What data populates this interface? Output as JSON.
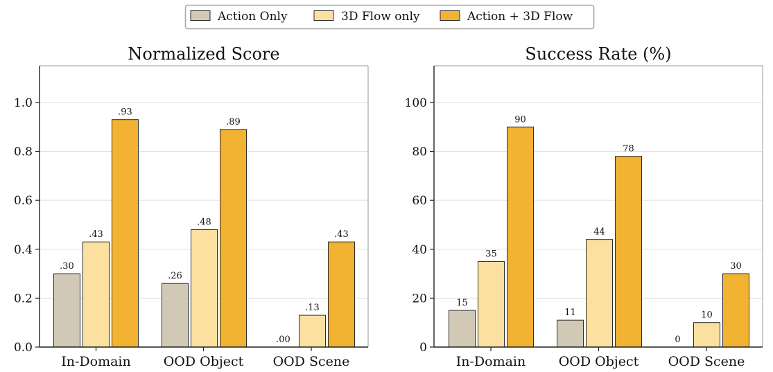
{
  "legend": {
    "placement": "top-center",
    "items": [
      {
        "label": "Action Only",
        "color": "#d1c9b5"
      },
      {
        "label": "3D Flow only",
        "color": "#fbe0a0"
      },
      {
        "label": "Action + 3D Flow",
        "color": "#f2b232"
      }
    ]
  },
  "chart_data": [
    {
      "type": "bar",
      "title": "Normalized Score",
      "xlabel": "",
      "ylabel": "",
      "ylim": [
        0,
        1.15
      ],
      "yticks": [
        0.0,
        0.2,
        0.4,
        0.6,
        0.8,
        1.0
      ],
      "ytick_labels": [
        "0.0",
        "0.2",
        "0.4",
        "0.6",
        "0.8",
        "1.0"
      ],
      "grid": "horizontal",
      "categories": [
        "In-Domain",
        "OOD Object",
        "OOD Scene"
      ],
      "series": [
        {
          "name": "Action Only",
          "color": "#d1c9b5",
          "values": [
            0.3,
            0.26,
            0.0
          ],
          "labels": [
            ".30",
            ".26",
            ".00"
          ]
        },
        {
          "name": "3D Flow only",
          "color": "#fbe0a0",
          "values": [
            0.43,
            0.48,
            0.13
          ],
          "labels": [
            ".43",
            ".48",
            ".13"
          ]
        },
        {
          "name": "Action + 3D Flow",
          "color": "#f2b232",
          "values": [
            0.93,
            0.89,
            0.43
          ],
          "labels": [
            ".93",
            ".89",
            ".43"
          ]
        }
      ]
    },
    {
      "type": "bar",
      "title": "Success Rate (%)",
      "xlabel": "",
      "ylabel": "",
      "ylim": [
        0,
        115
      ],
      "yticks": [
        0,
        20,
        40,
        60,
        80,
        100
      ],
      "ytick_labels": [
        "0",
        "20",
        "40",
        "60",
        "80",
        "100"
      ],
      "grid": "horizontal",
      "categories": [
        "In-Domain",
        "OOD Object",
        "OOD Scene"
      ],
      "series": [
        {
          "name": "Action Only",
          "color": "#d1c9b5",
          "values": [
            15,
            11,
            0
          ],
          "labels": [
            "15",
            "11",
            "0"
          ]
        },
        {
          "name": "3D Flow only",
          "color": "#fbe0a0",
          "values": [
            35,
            44,
            10
          ],
          "labels": [
            "35",
            "44",
            "10"
          ]
        },
        {
          "name": "Action + 3D Flow",
          "color": "#f2b232",
          "values": [
            90,
            78,
            30
          ],
          "labels": [
            "90",
            "78",
            "30"
          ]
        }
      ]
    }
  ]
}
